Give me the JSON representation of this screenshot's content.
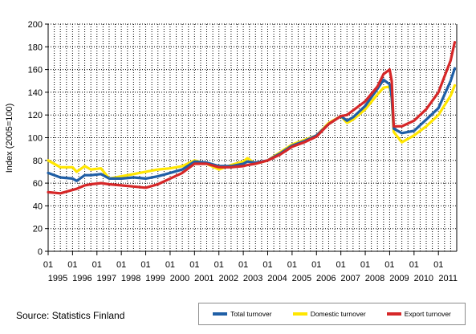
{
  "chart_data": {
    "type": "line",
    "title": "",
    "xlabel": "",
    "ylabel": "Index (2005=100)",
    "ylim": [
      0,
      200
    ],
    "y_ticks": [
      "0",
      "20",
      "40",
      "60",
      "80",
      "100",
      "120",
      "140",
      "160",
      "180",
      "200"
    ],
    "x_range": [
      "1995-01",
      "2011-09"
    ],
    "x_tick_months": [
      "01",
      "01",
      "01",
      "01",
      "01",
      "01",
      "01",
      "01",
      "01",
      "01",
      "01",
      "01",
      "01",
      "01",
      "01",
      "01",
      "01"
    ],
    "x_tick_years": [
      "1995",
      "1996",
      "1997",
      "1998",
      "1999",
      "2000",
      "2001",
      "2002",
      "2003",
      "2004",
      "2005",
      "2006",
      "2007",
      "2008",
      "2009",
      "2010",
      "2011"
    ],
    "grid": "dotted",
    "legend_position": "bottom-right",
    "source": "Source: Statistics Finland",
    "series": [
      {
        "name": "Total turnover",
        "color": "#1f5fa6",
        "points": [
          [
            "1995-01",
            69
          ],
          [
            "1995-07",
            65
          ],
          [
            "1996-01",
            64
          ],
          [
            "1996-03",
            62
          ],
          [
            "1996-07",
            67
          ],
          [
            "1996-10",
            67
          ],
          [
            "1997-03",
            68
          ],
          [
            "1997-07",
            64
          ],
          [
            "1998-01",
            64
          ],
          [
            "1998-07",
            65
          ],
          [
            "1999-01",
            64
          ],
          [
            "1999-07",
            66
          ],
          [
            "2000-01",
            69
          ],
          [
            "2000-07",
            72
          ],
          [
            "2001-01",
            79
          ],
          [
            "2001-07",
            78
          ],
          [
            "2002-01",
            75
          ],
          [
            "2002-07",
            75
          ],
          [
            "2003-01",
            77
          ],
          [
            "2003-03",
            79
          ],
          [
            "2003-07",
            78
          ],
          [
            "2004-01",
            80
          ],
          [
            "2004-07",
            86
          ],
          [
            "2005-01",
            93
          ],
          [
            "2005-07",
            97
          ],
          [
            "2006-01",
            102
          ],
          [
            "2006-07",
            112
          ],
          [
            "2007-01",
            119
          ],
          [
            "2007-04",
            115
          ],
          [
            "2007-07",
            118
          ],
          [
            "2008-01",
            128
          ],
          [
            "2008-07",
            143
          ],
          [
            "2008-10",
            151
          ],
          [
            "2009-01",
            147
          ],
          [
            "2009-02",
            136
          ],
          [
            "2009-03",
            108
          ],
          [
            "2009-07",
            104
          ],
          [
            "2010-01",
            106
          ],
          [
            "2010-07",
            116
          ],
          [
            "2011-01",
            126
          ],
          [
            "2011-07",
            150
          ],
          [
            "2011-09",
            161
          ]
        ]
      },
      {
        "name": "Domestic turnover",
        "color": "#ffe600",
        "points": [
          [
            "1995-01",
            80
          ],
          [
            "1995-07",
            74
          ],
          [
            "1996-01",
            74
          ],
          [
            "1996-03",
            70
          ],
          [
            "1996-07",
            75
          ],
          [
            "1996-10",
            72
          ],
          [
            "1997-03",
            73
          ],
          [
            "1997-07",
            64
          ],
          [
            "1998-01",
            66
          ],
          [
            "1998-07",
            68
          ],
          [
            "1999-01",
            70
          ],
          [
            "1999-07",
            72
          ],
          [
            "2000-01",
            73
          ],
          [
            "2000-07",
            75
          ],
          [
            "2001-01",
            80
          ],
          [
            "2001-07",
            77
          ],
          [
            "2002-01",
            72
          ],
          [
            "2002-07",
            76
          ],
          [
            "2003-01",
            79
          ],
          [
            "2003-03",
            82
          ],
          [
            "2003-07",
            77
          ],
          [
            "2004-01",
            80
          ],
          [
            "2004-07",
            87
          ],
          [
            "2005-01",
            94
          ],
          [
            "2005-07",
            98
          ],
          [
            "2006-01",
            102
          ],
          [
            "2006-07",
            113
          ],
          [
            "2007-01",
            119
          ],
          [
            "2007-04",
            113
          ],
          [
            "2007-07",
            116
          ],
          [
            "2008-01",
            125
          ],
          [
            "2008-07",
            138
          ],
          [
            "2008-10",
            144
          ],
          [
            "2009-01",
            145
          ],
          [
            "2009-02",
            135
          ],
          [
            "2009-03",
            105
          ],
          [
            "2009-07",
            96
          ],
          [
            "2010-01",
            102
          ],
          [
            "2010-07",
            110
          ],
          [
            "2011-01",
            120
          ],
          [
            "2011-07",
            137
          ],
          [
            "2011-09",
            146
          ]
        ]
      },
      {
        "name": "Export turnover",
        "color": "#d62728",
        "points": [
          [
            "1995-01",
            52
          ],
          [
            "1995-07",
            51
          ],
          [
            "1996-01",
            54
          ],
          [
            "1996-03",
            55
          ],
          [
            "1996-07",
            58
          ],
          [
            "1996-10",
            59
          ],
          [
            "1997-03",
            60
          ],
          [
            "1997-07",
            59
          ],
          [
            "1998-01",
            58
          ],
          [
            "1998-07",
            57
          ],
          [
            "1999-01",
            56
          ],
          [
            "1999-07",
            59
          ],
          [
            "2000-01",
            64
          ],
          [
            "2000-07",
            69
          ],
          [
            "2001-01",
            77
          ],
          [
            "2001-07",
            77
          ],
          [
            "2002-01",
            74
          ],
          [
            "2002-07",
            74
          ],
          [
            "2003-01",
            75
          ],
          [
            "2003-03",
            76
          ],
          [
            "2003-07",
            77
          ],
          [
            "2004-01",
            80
          ],
          [
            "2004-07",
            85
          ],
          [
            "2005-01",
            92
          ],
          [
            "2005-07",
            96
          ],
          [
            "2006-01",
            101
          ],
          [
            "2006-07",
            112
          ],
          [
            "2007-01",
            119
          ],
          [
            "2007-04",
            120
          ],
          [
            "2007-07",
            124
          ],
          [
            "2008-01",
            132
          ],
          [
            "2008-07",
            145
          ],
          [
            "2008-10",
            156
          ],
          [
            "2009-01",
            160
          ],
          [
            "2009-02",
            150
          ],
          [
            "2009-03",
            110
          ],
          [
            "2009-07",
            110
          ],
          [
            "2010-01",
            115
          ],
          [
            "2010-07",
            125
          ],
          [
            "2011-01",
            140
          ],
          [
            "2011-07",
            168
          ],
          [
            "2011-09",
            184
          ]
        ]
      }
    ]
  }
}
